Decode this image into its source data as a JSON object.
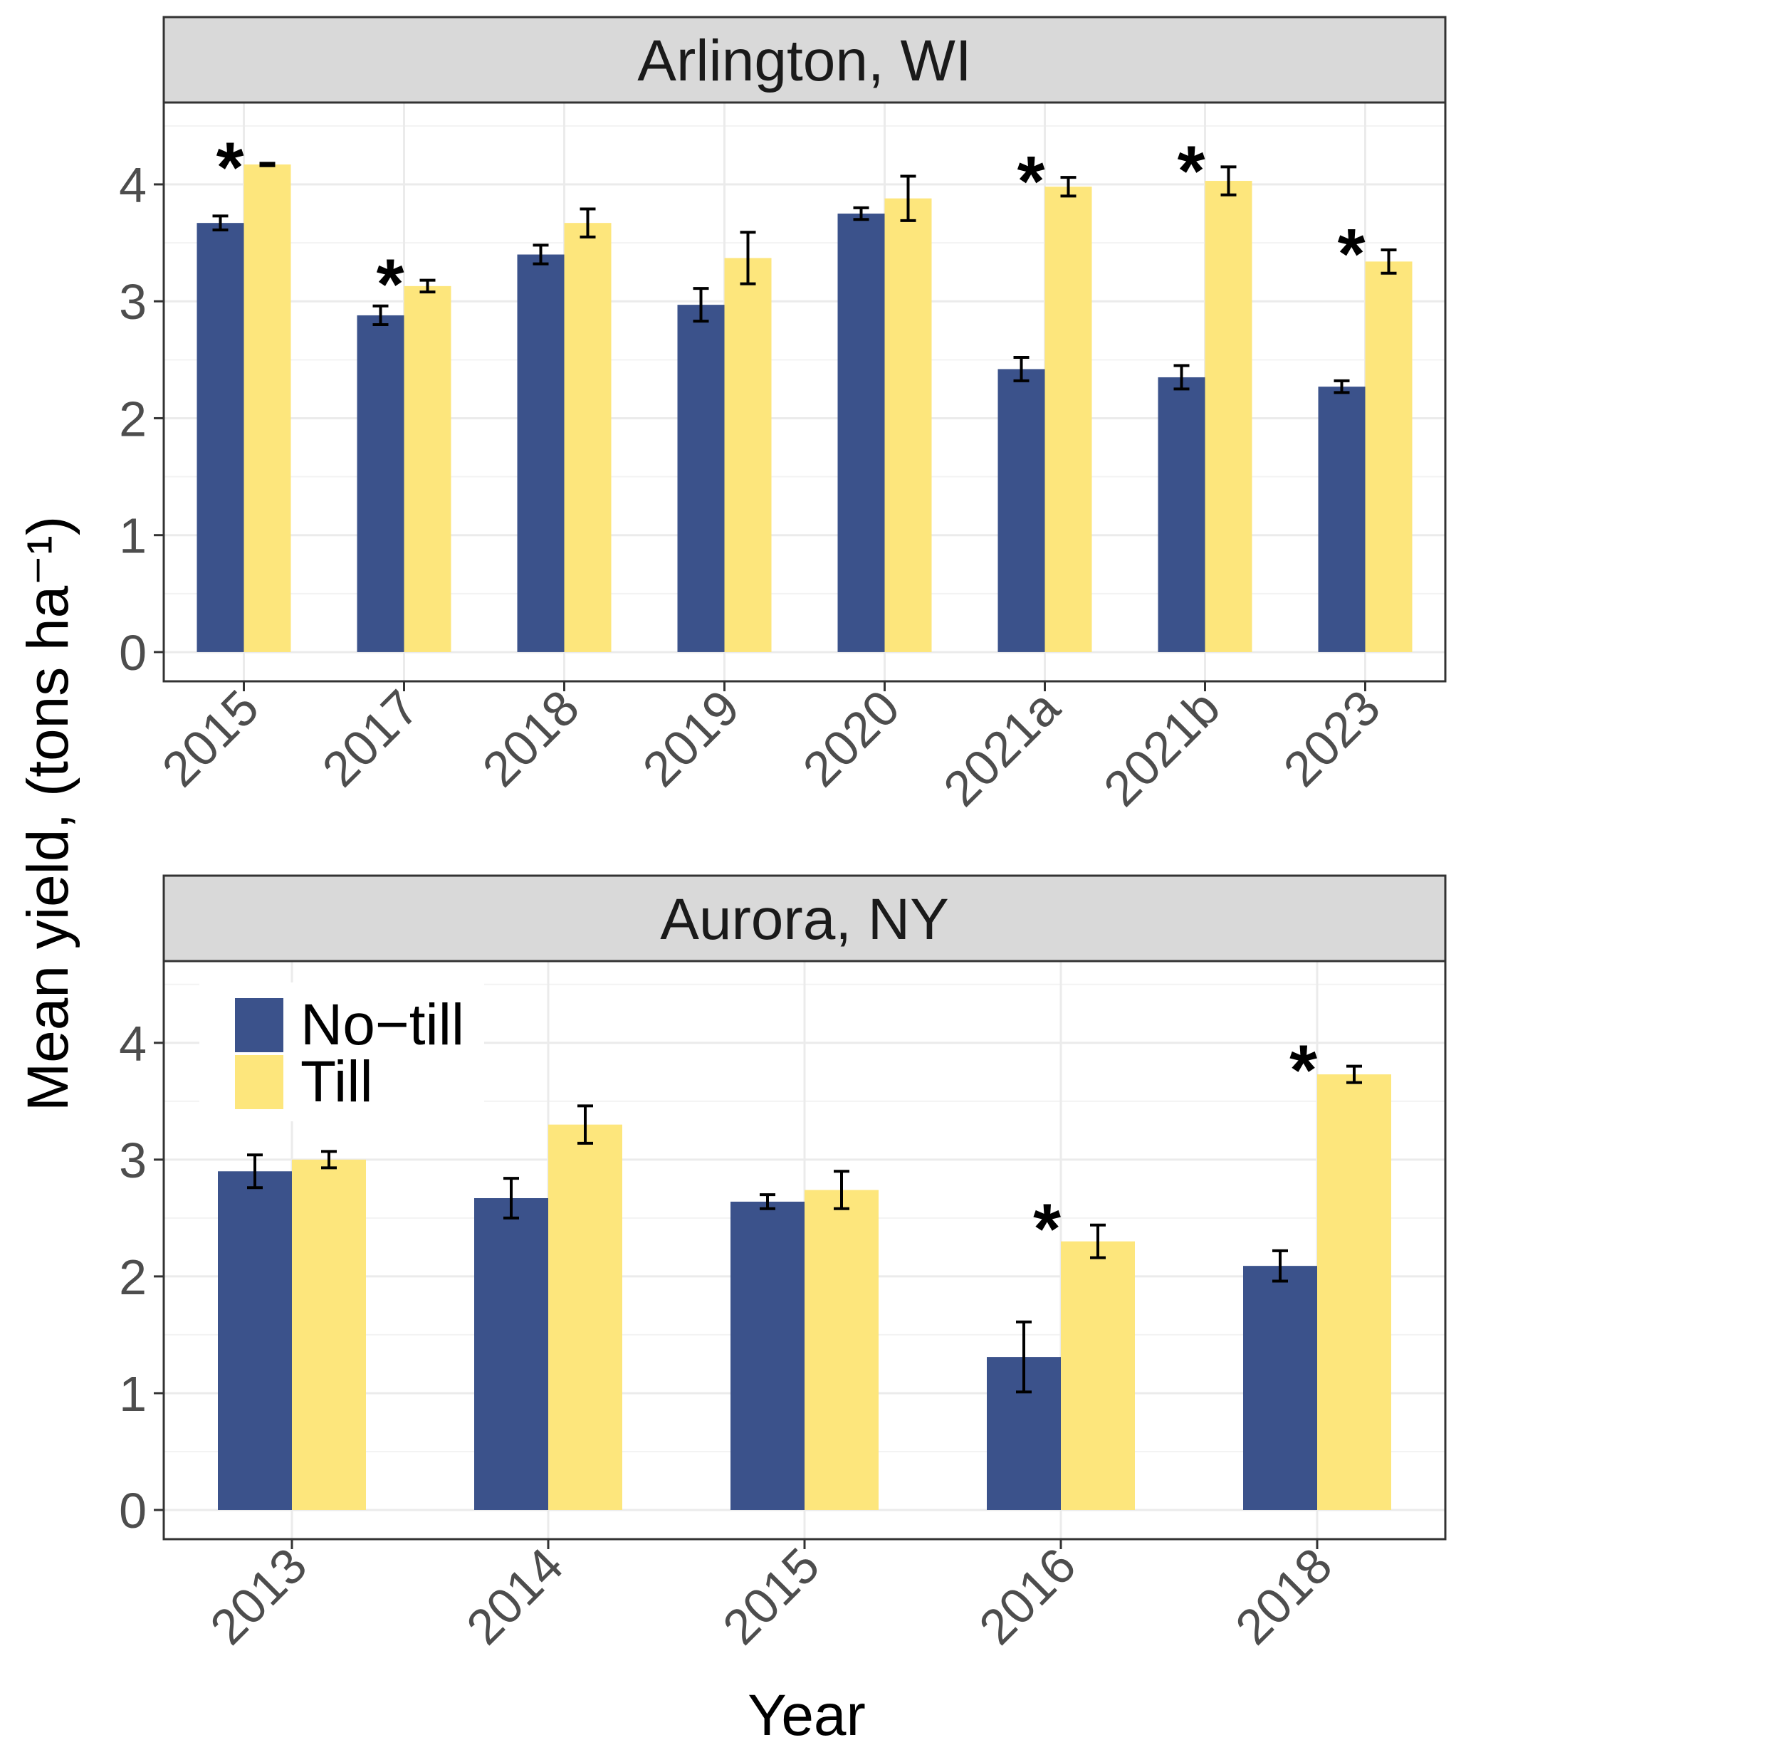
{
  "colors": {
    "no_till": "#3b528b",
    "till": "#fde67c",
    "strip_bg": "#d9d9d9",
    "grid_major": "#ebebeb",
    "grid_minor": "#f3f3f3",
    "border": "#333333"
  },
  "axis_titles": {
    "y": "Mean yield, (tons  ha⁻¹)",
    "x": "Year"
  },
  "legend": {
    "placement": "inside-top-left of bottom panel",
    "items": [
      {
        "label": "No−till",
        "color": "#3b528b"
      },
      {
        "label": "Till",
        "color": "#fde67c"
      }
    ]
  },
  "chart_data": [
    {
      "type": "bar",
      "title": "Arlington, WI",
      "xlabel": "Year",
      "ylabel": "Mean yield, (tons  ha⁻¹)",
      "ylim": [
        -0.25,
        4.7
      ],
      "yticks": [
        0,
        1,
        2,
        3,
        4
      ],
      "grid": true,
      "categories": [
        "2015",
        "2017",
        "2018",
        "2019",
        "2020",
        "2021a",
        "2021b",
        "2023"
      ],
      "series": [
        {
          "name": "No−till",
          "values": [
            3.67,
            2.88,
            3.4,
            2.97,
            3.75,
            2.42,
            2.35,
            2.27
          ],
          "err": [
            0.06,
            0.08,
            0.08,
            0.14,
            0.05,
            0.1,
            0.1,
            0.05
          ]
        },
        {
          "name": "Till",
          "values": [
            4.17,
            3.13,
            3.67,
            3.37,
            3.88,
            3.98,
            4.03,
            3.34
          ],
          "err": [
            0.01,
            0.05,
            0.12,
            0.22,
            0.19,
            0.08,
            0.12,
            0.1
          ]
        }
      ],
      "significance": [
        "*",
        "*",
        "",
        "",
        "",
        "*",
        "*",
        "*"
      ]
    },
    {
      "type": "bar",
      "title": "Aurora, NY",
      "xlabel": "Year",
      "ylabel": "Mean yield, (tons  ha⁻¹)",
      "ylim": [
        -0.25,
        4.7
      ],
      "yticks": [
        0,
        1,
        2,
        3,
        4
      ],
      "grid": true,
      "categories": [
        "2013",
        "2014",
        "2015",
        "2016",
        "2018"
      ],
      "series": [
        {
          "name": "No−till",
          "values": [
            2.9,
            2.67,
            2.64,
            1.31,
            2.09
          ],
          "err": [
            0.14,
            0.17,
            0.06,
            0.3,
            0.13
          ]
        },
        {
          "name": "Till",
          "values": [
            3.0,
            3.3,
            2.74,
            2.3,
            3.73
          ],
          "err": [
            0.07,
            0.16,
            0.16,
            0.14,
            0.07
          ]
        }
      ],
      "significance": [
        "",
        "",
        "",
        "*",
        "*"
      ]
    }
  ]
}
